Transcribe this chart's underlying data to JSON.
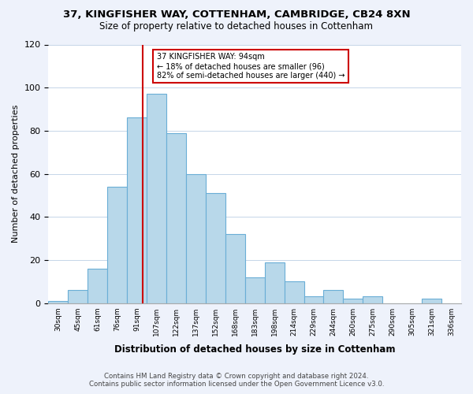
{
  "title1": "37, KINGFISHER WAY, COTTENHAM, CAMBRIDGE, CB24 8XN",
  "title2": "Size of property relative to detached houses in Cottenham",
  "xlabel": "Distribution of detached houses by size in Cottenham",
  "ylabel": "Number of detached properties",
  "bin_labels": [
    "30sqm",
    "45sqm",
    "61sqm",
    "76sqm",
    "91sqm",
    "107sqm",
    "122sqm",
    "137sqm",
    "152sqm",
    "168sqm",
    "183sqm",
    "198sqm",
    "214sqm",
    "229sqm",
    "244sqm",
    "260sqm",
    "275sqm",
    "290sqm",
    "305sqm",
    "321sqm",
    "336sqm"
  ],
  "bar_heights": [
    1,
    6,
    16,
    54,
    86,
    97,
    79,
    60,
    51,
    32,
    12,
    19,
    10,
    3,
    6,
    2,
    3,
    0,
    0,
    2,
    0
  ],
  "bar_color": "#b8d8ea",
  "bar_edge_color": "#6aaed6",
  "vline_x": 4.3,
  "annotation_line1": "37 KINGFISHER WAY: 94sqm",
  "annotation_line2": "← 18% of detached houses are smaller (96)",
  "annotation_line3": "82% of semi-detached houses are larger (440) →",
  "vline_color": "#cc0000",
  "annotation_box_edge": "#cc0000",
  "ylim": [
    0,
    120
  ],
  "yticks": [
    0,
    20,
    40,
    60,
    80,
    100,
    120
  ],
  "footer1": "Contains HM Land Registry data © Crown copyright and database right 2024.",
  "footer2": "Contains public sector information licensed under the Open Government Licence v3.0.",
  "bg_color": "#eef2fb",
  "plot_bg_color": "#ffffff",
  "grid_color": "#c5d5e8"
}
